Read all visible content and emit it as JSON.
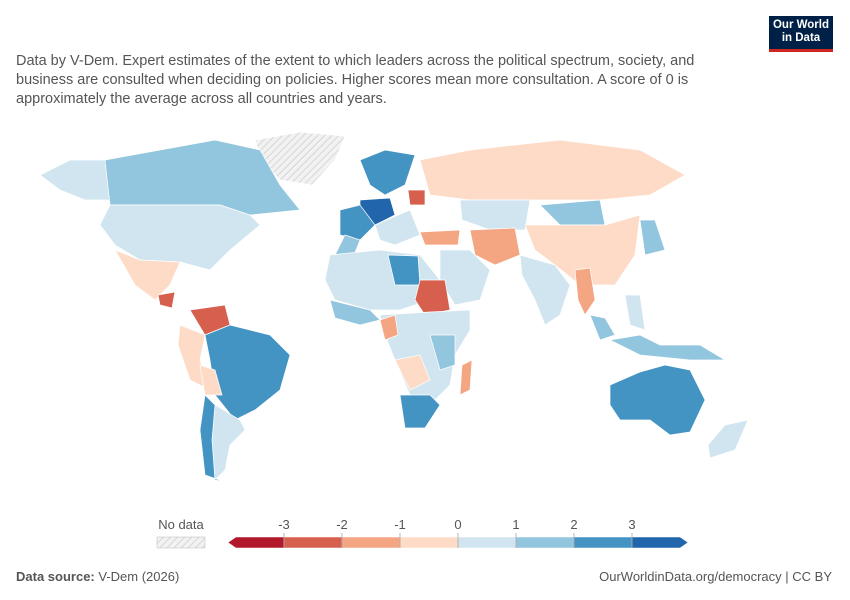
{
  "logo": "Our World in Data",
  "subtitle": "Data by V-Dem. Expert estimates of the extent to which leaders across the political spectrum, society, and business are consulted when deciding on policies. Higher scores mean more consultation. A score of 0 is approximately the average across all countries and years.",
  "legend": {
    "no_data": "No data",
    "ticks": [
      -3,
      -2,
      -1,
      0,
      1,
      2,
      3
    ],
    "colors": [
      "#b2182b",
      "#d6604d",
      "#f4a582",
      "#fddbc7",
      "#d1e5f0",
      "#92c5de",
      "#4393c3",
      "#2166ac"
    ]
  },
  "footer": {
    "source_label": "Data source:",
    "source": "V-Dem (2026)",
    "link": "OurWorldinData.org/democracy | CC BY"
  }
}
